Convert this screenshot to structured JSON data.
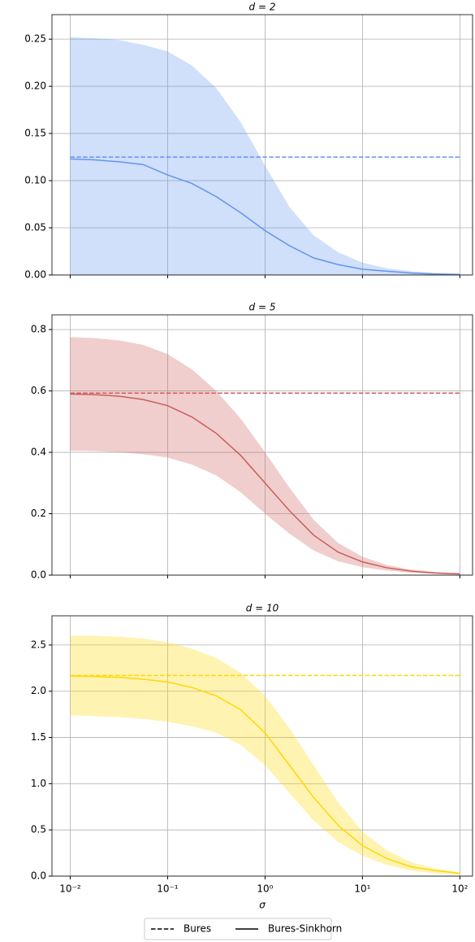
{
  "chart_data": [
    {
      "type": "line-band",
      "title": "d = 2",
      "x": [
        0.01,
        0.0178,
        0.0316,
        0.0562,
        0.1,
        0.178,
        0.316,
        0.562,
        1,
        1.78,
        3.16,
        5.62,
        10,
        17.8,
        31.6,
        56.2,
        100
      ],
      "xlim": [
        0.0065,
        135
      ],
      "xticks": [
        0.01,
        0.1,
        1,
        10,
        100
      ],
      "log_x": true,
      "ylim": [
        0,
        0.276
      ],
      "yticks": [
        {
          "value": 0,
          "label": "0.00"
        },
        0.05,
        {
          "value": 0.1,
          "label": "0.10"
        },
        0.15,
        {
          "value": 0.2,
          "label": "0.20"
        },
        0.25
      ],
      "grid": true,
      "color": "#6495ed",
      "bures": 0.125,
      "values": [
        0.123,
        0.122,
        0.12,
        0.117,
        0.106,
        0.097,
        0.083,
        0.066,
        0.047,
        0.031,
        0.018,
        0.011,
        0.006,
        0.004,
        0.002,
        0.001,
        0.0005
      ],
      "band": {
        "upper": [
          0.252,
          0.251,
          0.249,
          0.244,
          0.237,
          0.222,
          0.198,
          0.162,
          0.116,
          0.072,
          0.042,
          0.024,
          0.013,
          0.007,
          0.004,
          0.002,
          0.001
        ],
        "lower": [
          0,
          0,
          0,
          0,
          0,
          0,
          0,
          0,
          0,
          0,
          0,
          0,
          0,
          0,
          0,
          0,
          0
        ]
      }
    },
    {
      "type": "line-band",
      "title": "d = 5",
      "x": [
        0.01,
        0.0178,
        0.0316,
        0.0562,
        0.1,
        0.178,
        0.316,
        0.562,
        1,
        1.78,
        3.16,
        5.62,
        10,
        17.8,
        31.6,
        56.2,
        100
      ],
      "xlim": [
        0.0065,
        135
      ],
      "xticks": [
        0.01,
        0.1,
        1,
        10,
        100
      ],
      "log_x": true,
      "ylim": [
        0,
        0.848
      ],
      "yticks": [
        {
          "value": 0,
          "label": "0.0"
        },
        0.2,
        0.4,
        0.6,
        0.8
      ],
      "grid": true,
      "color": "#cd5c5c",
      "bures": 0.593,
      "values": [
        0.59,
        0.588,
        0.583,
        0.572,
        0.552,
        0.515,
        0.462,
        0.39,
        0.3,
        0.21,
        0.13,
        0.075,
        0.043,
        0.024,
        0.013,
        0.007,
        0.004
      ],
      "band": {
        "upper": [
          0.775,
          0.772,
          0.765,
          0.75,
          0.72,
          0.67,
          0.6,
          0.51,
          0.4,
          0.285,
          0.18,
          0.105,
          0.06,
          0.033,
          0.018,
          0.01,
          0.005
        ],
        "lower": [
          0.405,
          0.404,
          0.4,
          0.394,
          0.383,
          0.36,
          0.325,
          0.27,
          0.2,
          0.135,
          0.08,
          0.045,
          0.026,
          0.015,
          0.008,
          0.004,
          0.002
        ]
      }
    },
    {
      "type": "line-band",
      "title": "d = 10",
      "xlabel": "σ",
      "x": [
        0.01,
        0.0178,
        0.0316,
        0.0562,
        0.1,
        0.178,
        0.316,
        0.562,
        1,
        1.78,
        3.16,
        5.62,
        10,
        17.8,
        31.6,
        56.2,
        100
      ],
      "xlim": [
        0.0065,
        135
      ],
      "xticks": [
        {
          "value": 0.01,
          "label": "10⁻²"
        },
        {
          "value": 0.1,
          "label": "10⁻¹"
        },
        {
          "value": 1,
          "label": "10⁰"
        },
        {
          "value": 10,
          "label": "10¹"
        },
        {
          "value": 100,
          "label": "10²"
        }
      ],
      "log_x": true,
      "ylim": [
        0,
        2.816
      ],
      "yticks": [
        {
          "value": 0,
          "label": "0.0"
        },
        0.5,
        {
          "value": 1,
          "label": "1.0"
        },
        1.5,
        {
          "value": 2,
          "label": "2.0"
        },
        2.5
      ],
      "grid": true,
      "color": "#ffd700",
      "bures": 2.17,
      "values": [
        2.165,
        2.16,
        2.15,
        2.13,
        2.1,
        2.04,
        1.95,
        1.8,
        1.55,
        1.2,
        0.85,
        0.55,
        0.33,
        0.19,
        0.1,
        0.06,
        0.03
      ],
      "band": {
        "upper": [
          2.6,
          2.6,
          2.59,
          2.57,
          2.53,
          2.46,
          2.36,
          2.2,
          1.95,
          1.6,
          1.2,
          0.8,
          0.48,
          0.28,
          0.15,
          0.08,
          0.04
        ],
        "lower": [
          1.74,
          1.73,
          1.72,
          1.7,
          1.67,
          1.62,
          1.55,
          1.42,
          1.2,
          0.9,
          0.6,
          0.37,
          0.22,
          0.12,
          0.06,
          0.03,
          0.015
        ]
      }
    }
  ],
  "legend": {
    "entries": [
      {
        "name": "Bures",
        "style": "dashed"
      },
      {
        "name": "Bures-Sinkhorn",
        "style": "solid"
      }
    ]
  }
}
